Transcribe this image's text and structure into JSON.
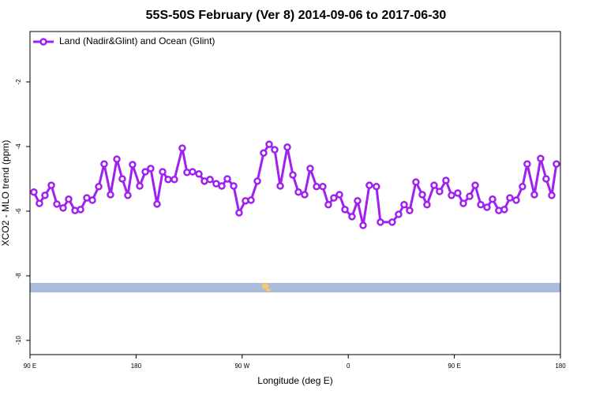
{
  "chart_data": {
    "type": "line",
    "title": "55S-50S February (Ver 8)   2014-09-06 to 2017-06-30",
    "xlabel": "Longitude (deg E)",
    "ylabel": "XCO2 - MLO trend (ppm)",
    "xlim": [
      90,
      540
    ],
    "ylim": [
      -10.44,
      -0.44
    ],
    "xticks": [
      {
        "value": 90,
        "label": "90 E"
      },
      180,
      {
        "value": 270,
        "label": "90 W"
      },
      {
        "value": 360,
        "label": "0"
      },
      {
        "value": 450,
        "label": "90 E"
      },
      {
        "value": 540,
        "label": "180"
      }
    ],
    "yticks": [
      -2,
      -4,
      -6,
      -8,
      -10
    ],
    "legend": "top-left",
    "x": [
      93.3,
      98.0,
      102.7,
      108.1,
      112.8,
      118.1,
      122.8,
      128.2,
      132.9,
      138.2,
      142.9,
      148.3,
      152.9,
      158.3,
      163.7,
      168.3,
      173.0,
      177.0,
      183.1,
      187.8,
      192.4,
      197.8,
      202.5,
      207.2,
      212.5,
      219.2,
      223.2,
      227.9,
      233.3,
      238.0,
      242.7,
      248.0,
      252.7,
      257.4,
      262.8,
      267.4,
      272.8,
      277.5,
      282.9,
      288.2,
      292.9,
      297.6,
      302.3,
      308.3,
      313.0,
      317.7,
      323.0,
      327.7,
      333.1,
      338.4,
      343.1,
      347.8,
      352.5,
      357.2,
      363.2,
      367.9,
      372.6,
      377.9,
      383.9,
      387.3,
      397.3,
      402.7,
      407.4,
      412.1,
      417.4,
      422.8,
      426.8,
      432.8,
      437.5,
      442.9,
      447.6,
      452.9,
      457.6,
      463.0,
      467.7,
      472.4,
      477.7,
      482.4,
      487.7,
      492.4,
      497.1,
      502.5,
      507.8,
      511.8,
      517.9,
      523.2,
      527.9,
      532.6,
      536.6
    ],
    "series": [
      {
        "name": "Land (Nadir&Glint) and Ocean (Glint)",
        "color": "#a020f0",
        "values": [
          -5.41,
          -5.76,
          -5.51,
          -5.2,
          -5.78,
          -5.9,
          -5.63,
          -5.98,
          -5.95,
          -5.59,
          -5.66,
          -5.24,
          -4.54,
          -5.49,
          -4.39,
          -5.0,
          -5.51,
          -4.56,
          -5.22,
          -4.78,
          -4.68,
          -5.78,
          -4.78,
          -5.02,
          -5.02,
          -4.05,
          -4.8,
          -4.78,
          -4.85,
          -5.07,
          -5.02,
          -5.15,
          -5.22,
          -5.0,
          -5.22,
          -6.05,
          -5.68,
          -5.66,
          -5.07,
          -4.2,
          -3.93,
          -4.1,
          -5.22,
          -4.02,
          -4.88,
          -5.41,
          -5.49,
          -4.68,
          -5.24,
          -5.24,
          -5.8,
          -5.59,
          -5.49,
          -5.95,
          -6.17,
          -5.68,
          -6.44,
          -5.2,
          -5.24,
          -6.34,
          -6.34,
          -6.1,
          -5.8,
          -5.98,
          -5.1,
          -5.49,
          -5.8,
          -5.2,
          -5.39,
          -5.05,
          -5.51,
          -5.44,
          -5.76,
          -5.54,
          -5.2,
          -5.8,
          -5.88,
          -5.63,
          -5.98,
          -5.95,
          -5.59,
          -5.66,
          -5.24,
          -4.54,
          -5.49,
          -4.37,
          -5.0,
          -5.51,
          -4.54
        ]
      }
    ]
  }
}
